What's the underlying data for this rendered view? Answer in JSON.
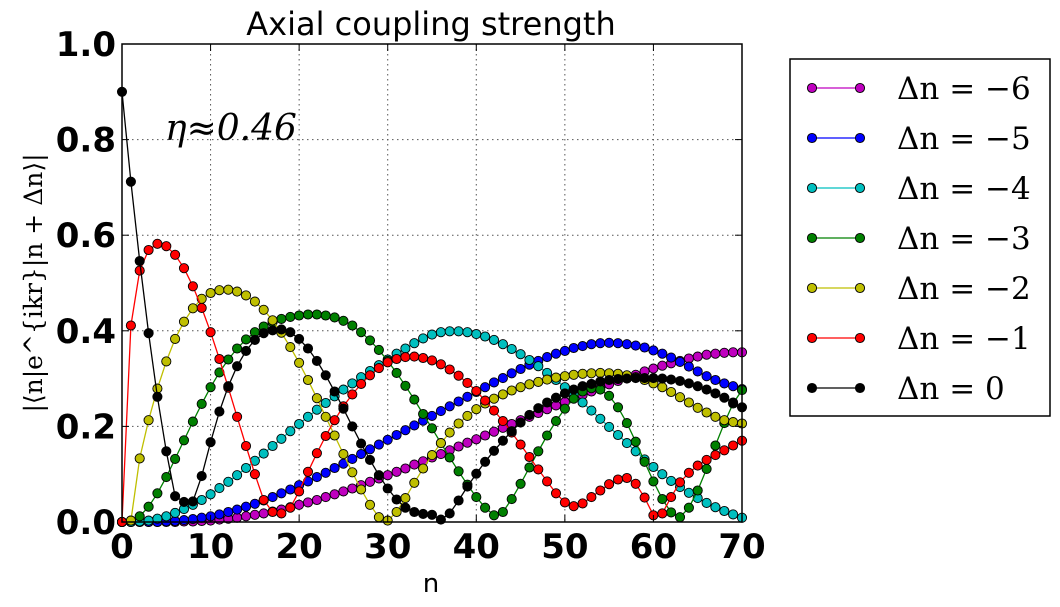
{
  "chart_data": {
    "type": "line",
    "title": "Axial coupling strength",
    "xlabel": "n",
    "ylabel": "|⟨n|e^{ikr}|n + Δn⟩|",
    "annotation": "η≈0.46",
    "xlim": [
      0,
      70
    ],
    "ylim": [
      0,
      1.0
    ],
    "xticks": [
      "0",
      "10",
      "20",
      "30",
      "40",
      "50",
      "60",
      "70"
    ],
    "yticks": [
      "0.0",
      "0.2",
      "0.4",
      "0.6",
      "0.8",
      "1.0"
    ],
    "grid": true,
    "legend_position": "outside right",
    "eta": 0.46,
    "x": [
      0,
      1,
      2,
      3,
      4,
      5,
      6,
      7,
      8,
      9,
      10,
      11,
      12,
      13,
      14,
      15,
      16,
      17,
      18,
      19,
      20,
      21,
      22,
      23,
      24,
      25,
      26,
      27,
      28,
      29,
      30,
      31,
      32,
      33,
      34,
      35,
      36,
      37,
      38,
      39,
      40,
      41,
      42,
      43,
      44,
      45,
      46,
      47,
      48,
      49,
      50,
      51,
      52,
      53,
      54,
      55,
      56,
      57,
      58,
      59,
      60,
      61,
      62,
      63,
      64,
      65,
      66,
      67,
      68,
      69,
      70
    ],
    "series": [
      {
        "name": "Δn = −6",
        "dn": -6,
        "color": "#bf00bf",
        "values": [
          0,
          0,
          0,
          0,
          0,
          0,
          0,
          0.001,
          0.001,
          0.002,
          0.003,
          0.005,
          0.007,
          0.009,
          0.012,
          0.015,
          0.018,
          0.022,
          0.026,
          0.031,
          0.036,
          0.041,
          0.046,
          0.052,
          0.058,
          0.064,
          0.07,
          0.077,
          0.084,
          0.091,
          0.098,
          0.105,
          0.112,
          0.12,
          0.127,
          0.135,
          0.142,
          0.15,
          0.158,
          0.166,
          0.173,
          0.181,
          0.189,
          0.197,
          0.205,
          0.213,
          0.22,
          0.228,
          0.236,
          0.244,
          0.251,
          0.259,
          0.266,
          0.273,
          0.281,
          0.288,
          0.295,
          0.302,
          0.308,
          0.315,
          0.321,
          0.327,
          0.332,
          0.337,
          0.342,
          0.346,
          0.35,
          0.352,
          0.354,
          0.355,
          0.355
        ]
      },
      {
        "name": "Δn = −5",
        "dn": -5,
        "color": "#0000ff",
        "values": [
          0,
          0,
          0,
          0,
          0,
          0.001,
          0.002,
          0.004,
          0.006,
          0.009,
          0.012,
          0.016,
          0.021,
          0.026,
          0.032,
          0.038,
          0.045,
          0.052,
          0.06,
          0.068,
          0.077,
          0.085,
          0.094,
          0.103,
          0.113,
          0.122,
          0.132,
          0.142,
          0.152,
          0.162,
          0.172,
          0.182,
          0.192,
          0.202,
          0.212,
          0.222,
          0.232,
          0.242,
          0.252,
          0.262,
          0.272,
          0.282,
          0.292,
          0.301,
          0.311,
          0.32,
          0.329,
          0.337,
          0.345,
          0.352,
          0.358,
          0.364,
          0.368,
          0.372,
          0.374,
          0.375,
          0.374,
          0.372,
          0.369,
          0.365,
          0.359,
          0.352,
          0.344,
          0.335,
          0.325,
          0.315,
          0.305,
          0.297,
          0.29,
          0.284,
          0.278
        ]
      },
      {
        "name": "Δn = −4",
        "dn": -4,
        "color": "#00bfbf",
        "values": [
          0,
          0,
          0.001,
          0.003,
          0.007,
          0.012,
          0.019,
          0.027,
          0.036,
          0.046,
          0.058,
          0.071,
          0.084,
          0.098,
          0.113,
          0.128,
          0.143,
          0.159,
          0.174,
          0.19,
          0.205,
          0.22,
          0.235,
          0.249,
          0.263,
          0.277,
          0.29,
          0.303,
          0.316,
          0.328,
          0.34,
          0.352,
          0.363,
          0.374,
          0.384,
          0.392,
          0.397,
          0.399,
          0.399,
          0.397,
          0.393,
          0.388,
          0.381,
          0.372,
          0.362,
          0.351,
          0.339,
          0.326,
          0.312,
          0.297,
          0.282,
          0.266,
          0.25,
          0.233,
          0.216,
          0.199,
          0.182,
          0.165,
          0.148,
          0.131,
          0.115,
          0.1,
          0.086,
          0.073,
          0.061,
          0.05,
          0.04,
          0.031,
          0.023,
          0.016,
          0.009
        ]
      },
      {
        "name": "Δn = −3",
        "dn": -3,
        "color": "#008000",
        "values": [
          0,
          0.003,
          0.012,
          0.032,
          0.06,
          0.094,
          0.132,
          0.171,
          0.21,
          0.247,
          0.282,
          0.313,
          0.34,
          0.363,
          0.382,
          0.397,
          0.409,
          0.418,
          0.425,
          0.429,
          0.432,
          0.434,
          0.434,
          0.432,
          0.428,
          0.421,
          0.411,
          0.397,
          0.38,
          0.36,
          0.337,
          0.312,
          0.285,
          0.256,
          0.226,
          0.196,
          0.165,
          0.135,
          0.106,
          0.078,
          0.052,
          0.03,
          0.014,
          0.021,
          0.048,
          0.08,
          0.114,
          0.148,
          0.181,
          0.211,
          0.237,
          0.258,
          0.273,
          0.28,
          0.277,
          0.264,
          0.24,
          0.207,
          0.168,
          0.126,
          0.085,
          0.048,
          0.02,
          0.01,
          0.03,
          0.066,
          0.111,
          0.16,
          0.207,
          0.248,
          0.276
        ]
      },
      {
        "name": "Δn = −2",
        "dn": -2,
        "color": "#bfbf00",
        "values": [
          0,
          0.003,
          0.133,
          0.213,
          0.279,
          0.336,
          0.383,
          0.419,
          0.447,
          0.467,
          0.479,
          0.485,
          0.486,
          0.482,
          0.474,
          0.461,
          0.444,
          0.422,
          0.396,
          0.366,
          0.333,
          0.297,
          0.259,
          0.22,
          0.181,
          0.142,
          0.104,
          0.068,
          0.036,
          0.01,
          0.003,
          0.021,
          0.05,
          0.082,
          0.112,
          0.14,
          0.165,
          0.187,
          0.206,
          0.222,
          0.236,
          0.248,
          0.258,
          0.267,
          0.275,
          0.282,
          0.288,
          0.293,
          0.298,
          0.302,
          0.305,
          0.308,
          0.31,
          0.311,
          0.312,
          0.311,
          0.31,
          0.307,
          0.303,
          0.297,
          0.29,
          0.282,
          0.272,
          0.261,
          0.25,
          0.239,
          0.229,
          0.22,
          0.213,
          0.209,
          0.206
        ]
      },
      {
        "name": "Δn = −1",
        "dn": -1,
        "color": "#ff0000",
        "values": [
          0,
          0.411,
          0.526,
          0.569,
          0.582,
          0.577,
          0.559,
          0.531,
          0.493,
          0.448,
          0.397,
          0.341,
          0.281,
          0.22,
          0.159,
          0.1,
          0.046,
          0.021,
          0.018,
          0.03,
          0.064,
          0.105,
          0.144,
          0.18,
          0.213,
          0.242,
          0.267,
          0.289,
          0.307,
          0.322,
          0.334,
          0.341,
          0.345,
          0.346,
          0.343,
          0.338,
          0.33,
          0.319,
          0.306,
          0.291,
          0.274,
          0.254,
          0.233,
          0.211,
          0.187,
          0.162,
          0.136,
          0.11,
          0.085,
          0.06,
          0.041,
          0.033,
          0.039,
          0.052,
          0.066,
          0.079,
          0.089,
          0.092,
          0.08,
          0.051,
          0.014,
          0.018,
          0.052,
          0.083,
          0.103,
          0.118,
          0.13,
          0.14,
          0.15,
          0.16,
          0.17
        ]
      },
      {
        "name": "Δn = 0",
        "dn": 0,
        "color": "#000000",
        "values": [
          0.9,
          0.712,
          0.546,
          0.395,
          0.262,
          0.148,
          0.054,
          0.042,
          0.043,
          0.096,
          0.167,
          0.231,
          0.284,
          0.326,
          0.358,
          0.381,
          0.395,
          0.401,
          0.403,
          0.397,
          0.383,
          0.363,
          0.337,
          0.307,
          0.273,
          0.237,
          0.2,
          0.164,
          0.13,
          0.098,
          0.07,
          0.047,
          0.03,
          0.021,
          0.017,
          0.015,
          0.005,
          0.018,
          0.045,
          0.074,
          0.101,
          0.126,
          0.149,
          0.17,
          0.19,
          0.208,
          0.224,
          0.238,
          0.25,
          0.26,
          0.269,
          0.277,
          0.284,
          0.289,
          0.294,
          0.297,
          0.299,
          0.3,
          0.301,
          0.301,
          0.301,
          0.3,
          0.298,
          0.295,
          0.29,
          0.284,
          0.277,
          0.269,
          0.26,
          0.25,
          0.24
        ]
      }
    ]
  }
}
